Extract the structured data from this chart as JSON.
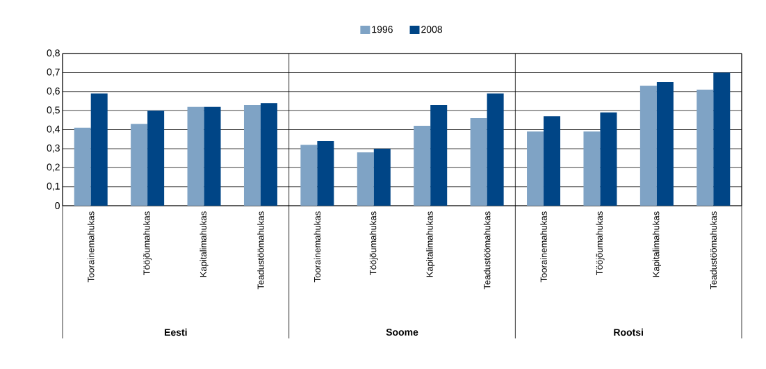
{
  "chart_data": {
    "type": "bar",
    "categories": [
      "Toorainemahukas",
      "Tööjõumahukas",
      "Kapitalimahukas",
      "Teadustöömahukas",
      "Toorainemahukas",
      "Tööjõumahukas",
      "Kapitalimahukas",
      "Teadustöömahukas",
      "Toorainemahukas",
      "Tööjõumahukas",
      "Kapitalimahukas",
      "Teadustöömahukas"
    ],
    "series": [
      {
        "name": "1996",
        "color": "#7fa3c5",
        "values": [
          0.41,
          0.43,
          0.52,
          0.53,
          0.32,
          0.28,
          0.42,
          0.46,
          0.39,
          0.39,
          0.63,
          0.61
        ]
      },
      {
        "name": "2008",
        "color": "#004586",
        "values": [
          0.59,
          0.5,
          0.52,
          0.54,
          0.34,
          0.3,
          0.53,
          0.59,
          0.47,
          0.49,
          0.65,
          0.7
        ]
      }
    ],
    "annotations": [
      "Eesti",
      "Soome",
      "Rootsi"
    ],
    "ylim": [
      0,
      0.8
    ],
    "yticks": [
      0,
      {
        "value": 0.1,
        "label": "0,1"
      },
      {
        "value": 0.2,
        "label": "0,2"
      },
      {
        "value": 0.3,
        "label": "0,3"
      },
      {
        "value": 0.4,
        "label": "0,4"
      },
      {
        "value": 0.5,
        "label": "0,5"
      },
      {
        "value": 0.6,
        "label": "0,6"
      },
      {
        "value": 0.7,
        "label": "0,7"
      },
      {
        "value": 0.8,
        "label": "0,8"
      }
    ],
    "grid": "y",
    "legend": "top"
  }
}
